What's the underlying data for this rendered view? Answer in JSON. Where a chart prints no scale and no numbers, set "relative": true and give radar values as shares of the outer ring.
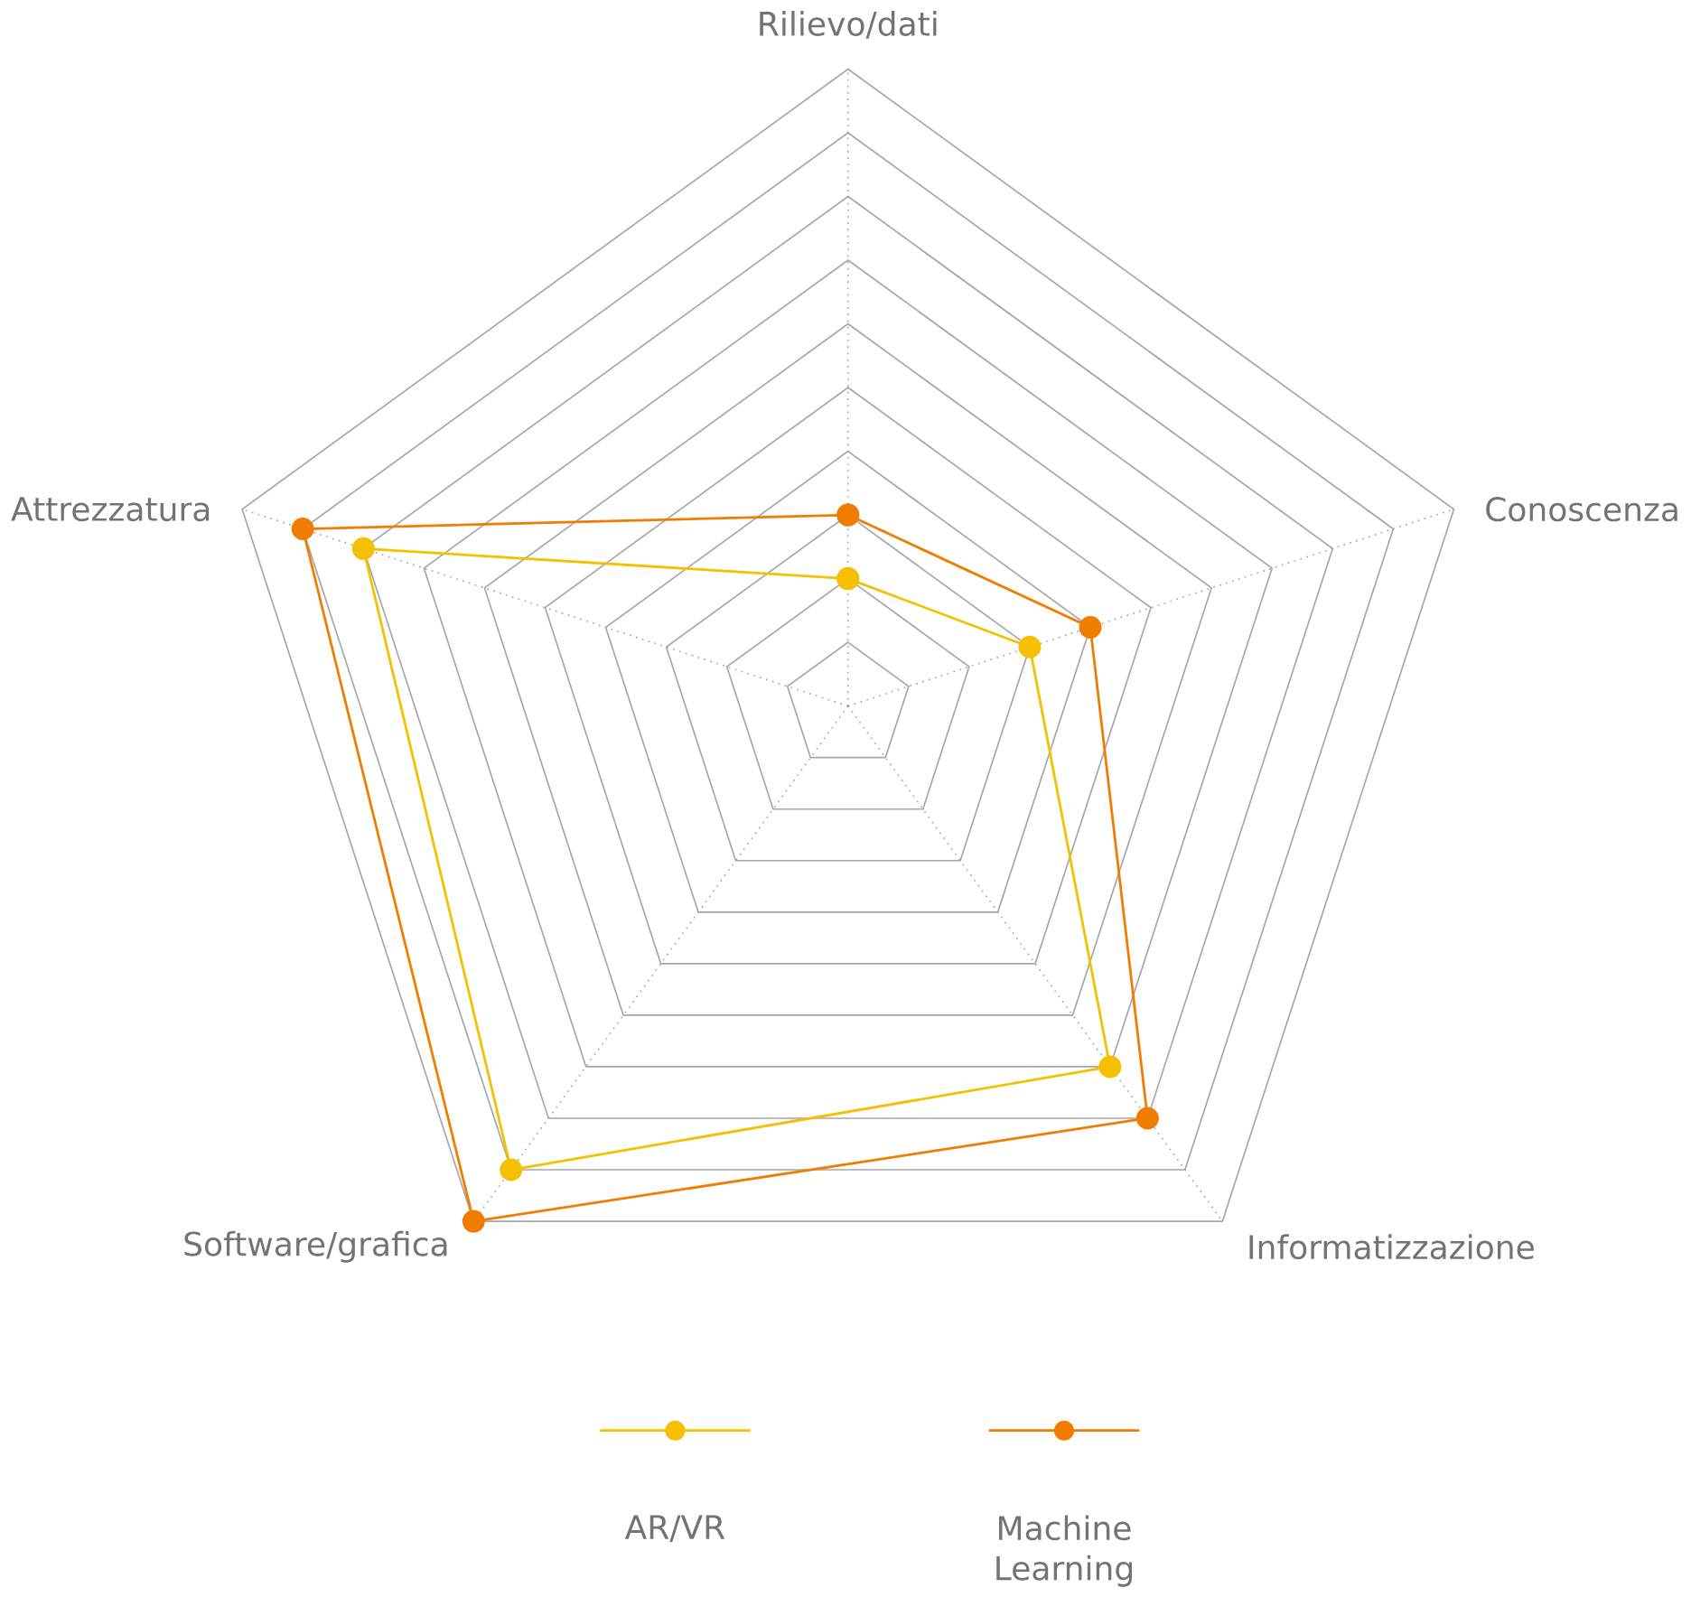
{
  "chart_data": {
    "type": "radar",
    "relative": true,
    "grid": true,
    "legend": "bottom",
    "marker": "circle",
    "categories": [
      "Rilievo/dati",
      "Conoscenza",
      "Informatizzazione",
      "Software/grafica",
      "Attrezzatura"
    ],
    "series": [
      {
        "name": "AR/VR",
        "color": "#f5c000",
        "values": [
          0.2,
          0.3,
          0.7,
          0.9,
          0.8
        ]
      },
      {
        "name": "Machine Learning",
        "color": "#f07c00",
        "values": [
          0.3,
          0.4,
          0.8,
          1.0,
          0.9
        ]
      }
    ]
  }
}
